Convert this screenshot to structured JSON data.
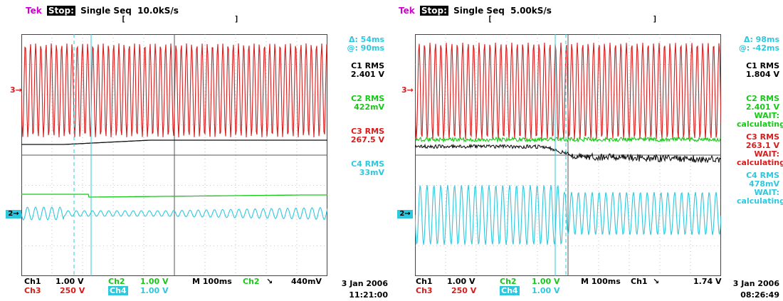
{
  "colors": {
    "ch1": "#111111",
    "ch2": "#18c818",
    "ch3": "#d81c1c",
    "ch4": "#2ec8de",
    "brand": "#d000d0"
  },
  "panels": [
    {
      "header": {
        "brand": "Tek",
        "state": "Stop:",
        "mode": "Single Seq",
        "rate": "10.0kS/s"
      },
      "cursor": {
        "delta": "Δ: 54ms",
        "at": "@: 90ms"
      },
      "meas": [
        {
          "label": "C1 RMS",
          "value": "2.401 V",
          "note": ""
        },
        {
          "label": "C2 RMS",
          "value": "422mV",
          "note": ""
        },
        {
          "label": "C3 RMS",
          "value": "267.5 V",
          "note": ""
        },
        {
          "label": "C4 RMS",
          "value": "33mV",
          "note": ""
        }
      ],
      "footer": {
        "ch1": "Ch1",
        "ch1_scale": "1.00 V",
        "ch2": "Ch2",
        "ch2_scale": "1.00 V",
        "ch3": "Ch3",
        "ch3_scale": "250 V",
        "ch4": "Ch4",
        "ch4_scale": "1.00 V",
        "timebase": "M 100ms",
        "trig_src": "Ch2",
        "trig_slope": "↘",
        "trig_level": "440mV"
      },
      "date": "3 Jan 2006",
      "time": "11:21:00",
      "markers": {
        "ch3": "3→",
        "ch24": "2→"
      }
    },
    {
      "header": {
        "brand": "Tek",
        "state": "Stop:",
        "mode": "Single Seq",
        "rate": "5.00kS/s"
      },
      "cursor": {
        "delta": "Δ: 98ms",
        "at": "@: -42ms"
      },
      "meas": [
        {
          "label": "C1 RMS",
          "value": "1.804 V",
          "note": ""
        },
        {
          "label": "C2 RMS",
          "value": "2.401 V",
          "note": "WAIT: calculating"
        },
        {
          "label": "C3 RMS",
          "value": "263.1 V",
          "note": "WAIT: calculating"
        },
        {
          "label": "C4 RMS",
          "value": "478mV",
          "note": "WAIT: calculating"
        }
      ],
      "footer": {
        "ch1": "Ch1",
        "ch1_scale": "1.00 V",
        "ch2": "Ch2",
        "ch2_scale": "1.00 V",
        "ch3": "Ch3",
        "ch3_scale": "250 V",
        "ch4": "Ch4",
        "ch4_scale": "1.00 V",
        "timebase": "M 100ms",
        "trig_src": "Ch1",
        "trig_slope": "↘",
        "trig_level": "1.74 V"
      },
      "date": "3 Jan 2006",
      "time": "08:26:49",
      "markers": {
        "ch3": "3→",
        "ch24": "2→"
      }
    }
  ],
  "chart_data": [
    {
      "type": "line",
      "grid": "on",
      "xlabel": "",
      "ylabel": "",
      "series": [
        {
          "name": "Ch3",
          "values": [
            {
              "t": 0,
              "env": 1.0
            },
            {
              "t": 1,
              "env": 1.0
            }
          ]
        },
        {
          "name": "Ch1",
          "values": [
            0.0,
            0.0,
            0.05,
            0.08,
            0.1,
            0.1
          ]
        },
        {
          "name": "Ch2",
          "values": [
            0.0,
            0.0,
            0.05,
            0.1,
            0.12,
            0.12
          ]
        },
        {
          "name": "Ch4",
          "values": [
            1.0,
            0.6,
            0.35,
            0.35,
            0.4,
            0.45
          ]
        }
      ]
    },
    {
      "type": "line",
      "grid": "on",
      "xlabel": "",
      "ylabel": "",
      "series": [
        {
          "name": "Ch3",
          "values": [
            1.0,
            1.0,
            1.0,
            1.0,
            1.0,
            1.0
          ]
        },
        {
          "name": "Ch1",
          "values": [
            0.0,
            0.0,
            0.0,
            0.35,
            0.4,
            0.4
          ]
        },
        {
          "name": "Ch2",
          "values": [
            0.0,
            0.0,
            0.05,
            0.05,
            0.05,
            0.05
          ]
        },
        {
          "name": "Ch4",
          "values": [
            1.0,
            1.0,
            1.0,
            0.8,
            0.8,
            0.8
          ]
        }
      ]
    }
  ]
}
